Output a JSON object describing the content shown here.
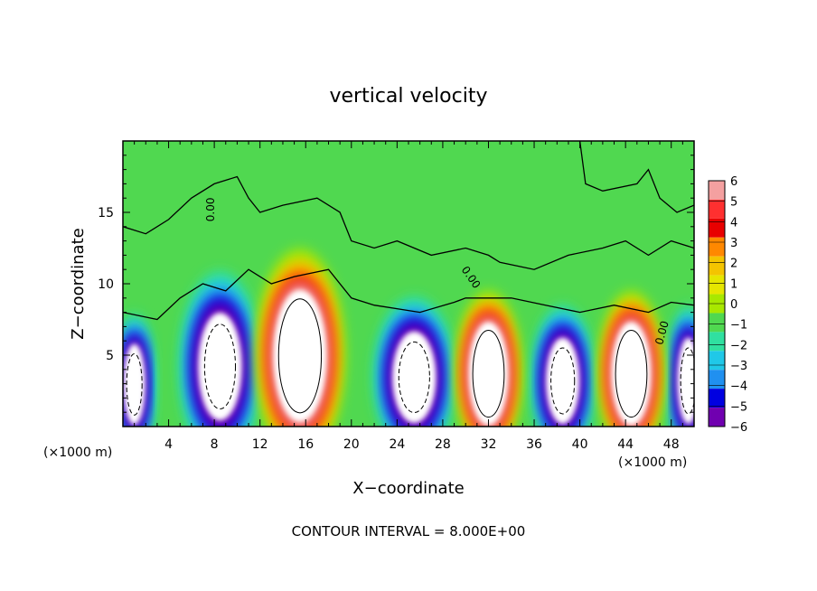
{
  "chart_data": {
    "type": "heatmap",
    "title": "vertical velocity",
    "xlabel": "X−coordinate",
    "ylabel": "Z−coordinate",
    "x_unit_left": "(×1000 m)",
    "x_unit_right": "(×1000 m)",
    "footer": "CONTOUR INTERVAL = 8.000E+00",
    "xlim": [
      0,
      50
    ],
    "ylim": [
      0,
      20
    ],
    "x_ticks": [
      "4",
      "8",
      "12",
      "16",
      "20",
      "24",
      "28",
      "32",
      "36",
      "40",
      "44",
      "48"
    ],
    "y_ticks": [
      "5",
      "10",
      "15"
    ],
    "contour_label": "0.00",
    "colorbar": {
      "range": [
        -6,
        6
      ],
      "labels": [
        "6",
        "5",
        "4",
        "3",
        "2",
        "1",
        "0",
        "−1",
        "−2",
        "−3",
        "−4",
        "−5",
        "−6"
      ],
      "colors": [
        "#f4a0a0",
        "#ff3030",
        "#e80000",
        "#ff8800",
        "#f4c400",
        "#e6e600",
        "#a8e800",
        "#50d850",
        "#30e0a0",
        "#20c8e8",
        "#2090f0",
        "#0000e0",
        "#7000b0"
      ]
    },
    "updrafts": [
      {
        "x": 15.5,
        "z_top": 10.5,
        "half_width": 3.4,
        "peak": "above 6"
      },
      {
        "x": 32.0,
        "z_top": 8.0,
        "half_width": 2.5,
        "peak": "above 6"
      },
      {
        "x": 44.5,
        "z_top": 8.0,
        "half_width": 2.5,
        "peak": "above 6"
      }
    ],
    "downdrafts": [
      {
        "x": 8.5,
        "z_top": 9.0,
        "half_width": 3.0,
        "peak": "below -6"
      },
      {
        "x": 25.5,
        "z_top": 7.5,
        "half_width": 3.0,
        "peak": "below -6"
      },
      {
        "x": 38.5,
        "z_top": 7.0,
        "half_width": 2.3,
        "peak": "below -6"
      },
      {
        "x": 1.0,
        "z_top": 6.5,
        "half_width": 1.5,
        "peak": "below -6"
      },
      {
        "x": 49.5,
        "z_top": 7.0,
        "half_width": 1.5,
        "peak": "below -6"
      }
    ],
    "background_value": 0
  }
}
